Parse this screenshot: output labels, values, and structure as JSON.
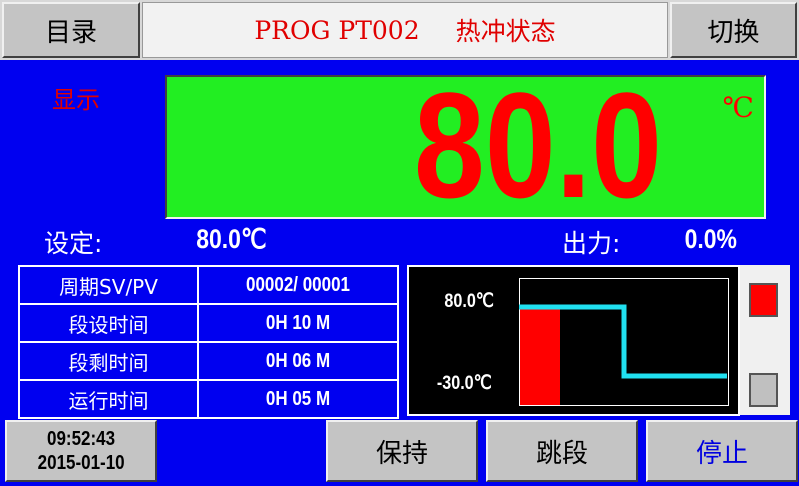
{
  "header": {
    "menu_label": "目录",
    "program": "PROG PT002",
    "status": "热冲状态",
    "switch_label": "切换"
  },
  "display": {
    "label": "显示",
    "value": "80.0",
    "unit": "℃",
    "setpoint_label": "设定:",
    "setpoint": "80.0℃",
    "output_label": "出力:",
    "output": "0.0%"
  },
  "table": {
    "rows": [
      {
        "label": "周期SV/PV",
        "value": "00002/  00001"
      },
      {
        "label": "段设时间",
        "value": "0H  10 M"
      },
      {
        "label": "段剩时间",
        "value": "0H  06 M"
      },
      {
        "label": "运行时间",
        "value": "0H  05 M"
      }
    ]
  },
  "chart": {
    "high_label": "80.0℃",
    "low_label": "-30.0℃",
    "line_color": "#20e0f0",
    "bar_color": "#ff0000"
  },
  "indicators": [
    {
      "state": "on",
      "color": "#ff0000"
    },
    {
      "state": "off",
      "color": "#c0c0c0"
    }
  ],
  "footer": {
    "time": "09:52:43",
    "date": "2015-01-10",
    "hold_label": "保持",
    "skip_label": "跳段",
    "stop_label": "停止"
  }
}
